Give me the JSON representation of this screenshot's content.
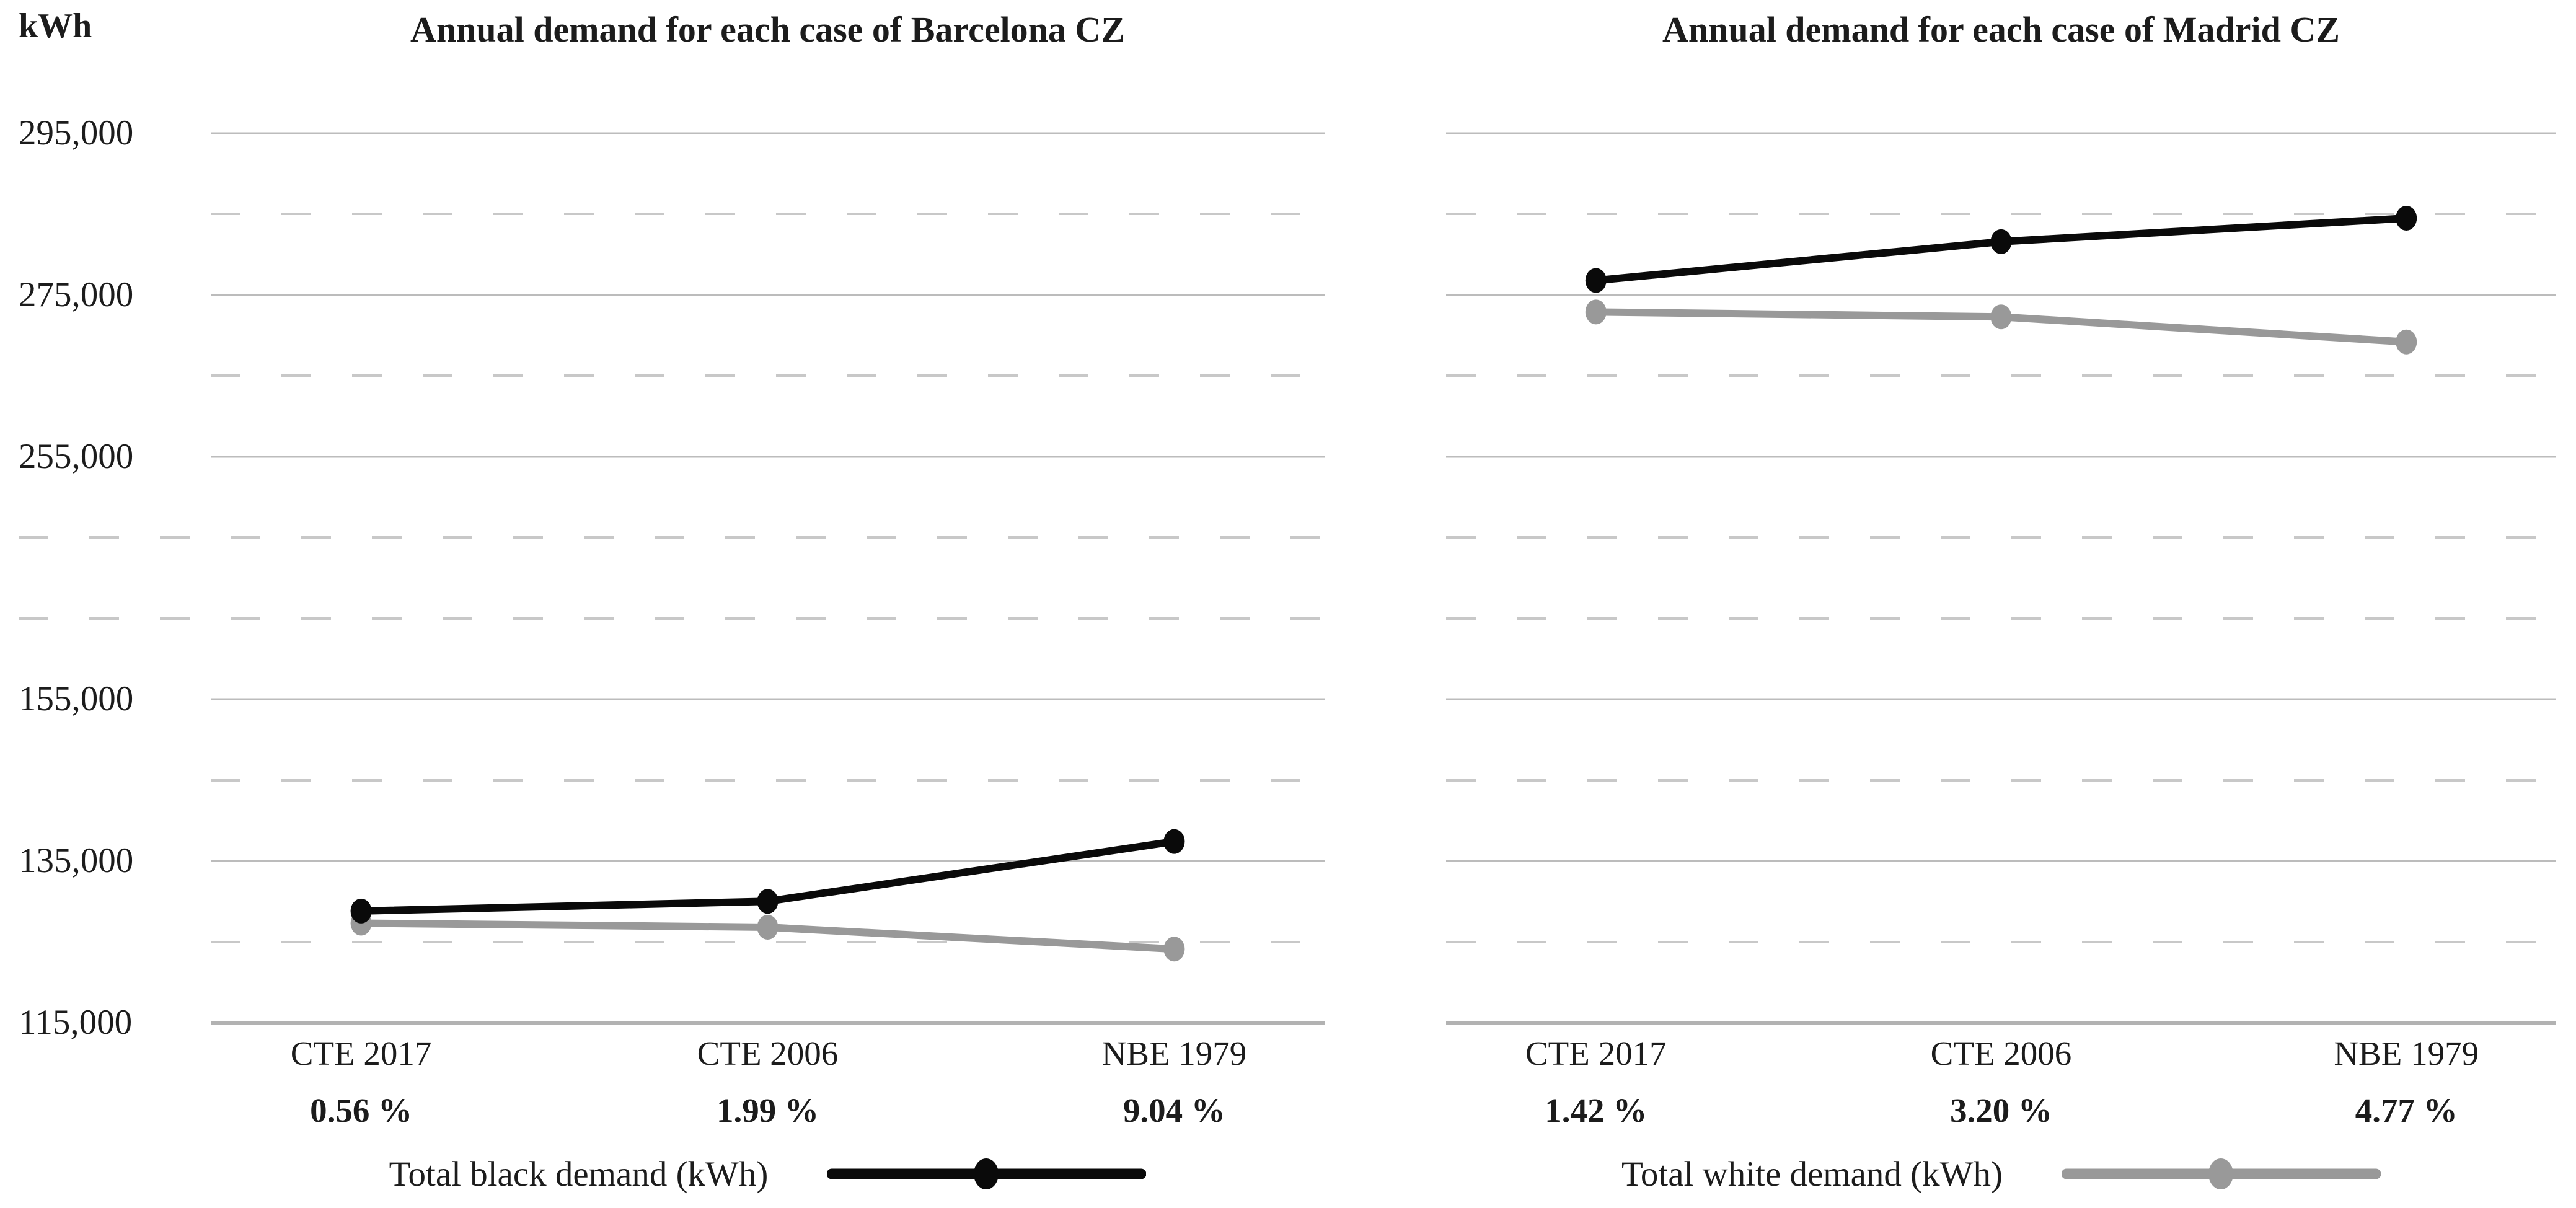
{
  "figure": {
    "background": "#ffffff"
  },
  "y_axis": {
    "unit_label": "kWh",
    "ticks": [
      {
        "label": "295,000",
        "value": 295000
      },
      {
        "label": "275,000",
        "value": 275000
      },
      {
        "label": "255,000",
        "value": 255000
      },
      {
        "label": "155,000",
        "value": 155000
      },
      {
        "label": "135,000",
        "value": 135000
      },
      {
        "label": "115,000",
        "value": 115000
      }
    ],
    "minor_gridlines": "dashed every 10,000 kWh",
    "axis_break_between": [
      245000,
      165000
    ]
  },
  "chart_data": [
    {
      "type": "line",
      "title": "Annual demand for each case of Barcelona CZ",
      "categories": [
        "CTE 2017",
        "CTE 2006",
        "NBE 1979"
      ],
      "percent_labels": [
        "0.56 %",
        "1.99 %",
        "9.04 %"
      ],
      "series": [
        {
          "name": "Total black demand (kWh)",
          "color": "#0a0a0a",
          "values": [
            128800,
            130000,
            137400
          ]
        },
        {
          "name": "Total white demand (kWh)",
          "color": "#999999",
          "values": [
            127300,
            126800,
            124100
          ]
        }
      ],
      "legend": {
        "label": "Total black demand (kWh)",
        "series": "black"
      },
      "ylabel": "kWh",
      "ylim": [
        115000,
        295000
      ],
      "grid": true,
      "legend_position": "bottom"
    },
    {
      "type": "line",
      "title": "Annual demand for each case of Madrid CZ",
      "categories": [
        "CTE 2017",
        "CTE 2006",
        "NBE 1979"
      ],
      "percent_labels": [
        "1.42 %",
        "3.20 %",
        "4.77 %"
      ],
      "series": [
        {
          "name": "Total black demand (kWh)",
          "color": "#0a0a0a",
          "values": [
            276800,
            281600,
            284500
          ]
        },
        {
          "name": "Total white demand (kWh)",
          "color": "#999999",
          "values": [
            272900,
            272300,
            269200
          ]
        }
      ],
      "legend": {
        "label": "Total white demand (kWh)",
        "series": "white"
      },
      "ylabel": "kWh",
      "ylim": [
        115000,
        295000
      ],
      "grid": true,
      "legend_position": "bottom"
    }
  ],
  "colors": {
    "black_series": "#0a0a0a",
    "white_series": "#999999",
    "gridline": "#bcbcbc",
    "gridline_dashed": "#c8c8c8",
    "axis_line": "#b2b2b2",
    "text": "#1c1c1c"
  }
}
